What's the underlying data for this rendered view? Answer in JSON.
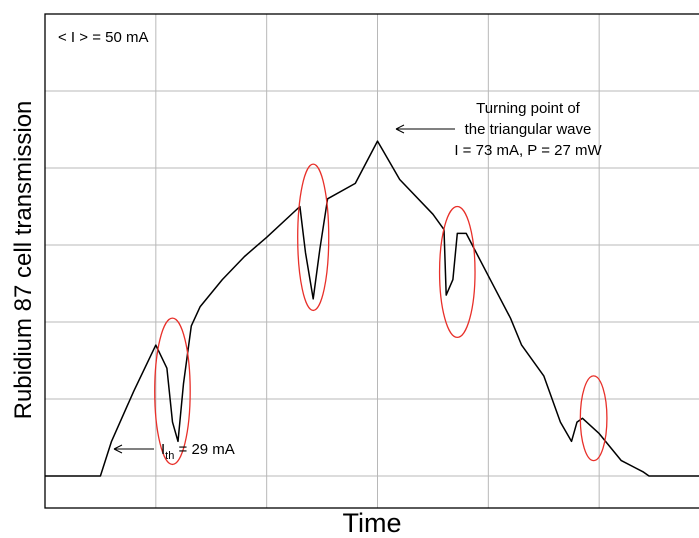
{
  "chart_data": {
    "type": "line",
    "xlabel": "Time",
    "ylabel": "Rubidium 87 cell transmission",
    "grid": true,
    "xlim": [
      0,
      6
    ],
    "ylim": [
      0,
      6
    ],
    "x_ticks": [
      0,
      1,
      2,
      3,
      4,
      5,
      6
    ],
    "y_ticks": [
      0,
      1,
      2,
      3,
      4,
      5,
      6
    ],
    "series": [
      {
        "x": [
          0,
          0.5,
          0.6,
          0.8,
          1.0,
          1.1,
          1.15,
          1.2,
          1.25,
          1.32,
          1.4,
          1.6,
          1.8,
          2.0,
          2.3,
          2.35,
          2.42,
          2.48,
          2.55,
          2.8,
          3.0,
          3.2,
          3.5,
          3.6,
          3.62,
          3.68,
          3.72,
          3.8,
          4.0,
          4.2,
          4.3,
          4.5,
          4.65,
          4.75,
          4.8,
          4.85,
          5.0,
          5.2,
          5.4,
          5.45,
          6.0
        ],
        "y": [
          0.0,
          0.0,
          0.45,
          1.1,
          1.7,
          1.4,
          0.7,
          0.45,
          1.2,
          1.95,
          2.2,
          2.55,
          2.85,
          3.1,
          3.5,
          2.9,
          2.3,
          2.95,
          3.6,
          3.8,
          4.35,
          3.85,
          3.4,
          3.2,
          2.35,
          2.55,
          3.15,
          3.15,
          2.6,
          2.05,
          1.7,
          1.3,
          0.7,
          0.45,
          0.7,
          0.75,
          0.55,
          0.2,
          0.05,
          0.0,
          0.0
        ]
      }
    ],
    "annotations": [
      {
        "text": "< I > = 50 mA",
        "x": 0.03,
        "y": 5.8
      },
      {
        "text": "Turning point of",
        "x": 3.8,
        "y": 4.8
      },
      {
        "text": "the triangular wave",
        "x": 3.8,
        "y": 4.55
      },
      {
        "text": "I = 73 mA, P = 27 mW",
        "x": 3.8,
        "y": 4.3
      },
      {
        "text": "I",
        "subscript": "th",
        "suffix": " = 29 mA",
        "x": 0.8,
        "y": 0.0
      }
    ],
    "highlight_color": "#e8302a",
    "line_color": "#000000"
  }
}
